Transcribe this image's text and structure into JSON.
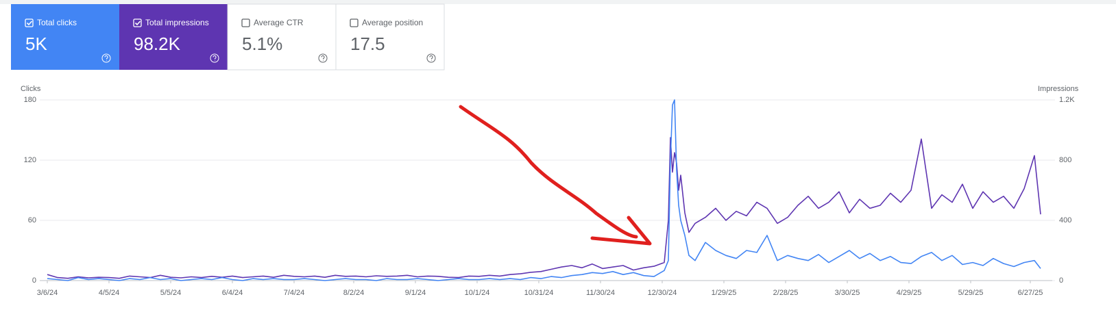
{
  "metrics": [
    {
      "label": "Total clicks",
      "value": "5K",
      "checked": true,
      "color": "#4285f4"
    },
    {
      "label": "Total impressions",
      "value": "98.2K",
      "checked": true,
      "color": "#5e35b1"
    },
    {
      "label": "Average CTR",
      "value": "5.1%",
      "checked": false,
      "color": "#ffffff"
    },
    {
      "label": "Average position",
      "value": "17.5",
      "checked": false,
      "color": "#ffffff"
    }
  ],
  "chart_data": {
    "type": "line",
    "y_label": "Clicks",
    "y2_label": "Impressions",
    "x": [
      "3/6/24",
      "3/11/24",
      "3/16/24",
      "3/21/24",
      "3/26/24",
      "3/31/24",
      "4/5/24",
      "4/10/24",
      "4/15/24",
      "4/20/24",
      "4/25/24",
      "4/30/24",
      "5/5/24",
      "5/10/24",
      "5/15/24",
      "5/20/24",
      "5/25/24",
      "5/30/24",
      "6/4/24",
      "6/9/24",
      "6/14/24",
      "6/19/24",
      "6/24/24",
      "6/29/24",
      "7/4/24",
      "7/9/24",
      "7/14/24",
      "7/19/24",
      "7/24/24",
      "7/29/24",
      "8/3/24",
      "8/8/24",
      "8/13/24",
      "8/18/24",
      "8/23/24",
      "8/28/24",
      "9/2/24",
      "9/7/24",
      "9/12/24",
      "9/17/24",
      "9/22/24",
      "9/27/24",
      "10/2/24",
      "10/7/24",
      "10/12/24",
      "10/17/24",
      "10/22/24",
      "10/27/24",
      "11/1/24",
      "11/6/24",
      "11/11/24",
      "11/16/24",
      "11/21/24",
      "11/26/24",
      "12/1/24",
      "12/6/24",
      "12/11/24",
      "12/16/24",
      "12/21/24",
      "12/26/24",
      "12/31/24",
      "1/2/25",
      "1/3/25",
      "1/4/25",
      "1/5/25",
      "1/6/25",
      "1/7/25",
      "1/8/25",
      "1/10/25",
      "1/12/25",
      "1/15/25",
      "1/20/25",
      "1/25/25",
      "1/30/25",
      "2/4/25",
      "2/9/25",
      "2/14/25",
      "2/19/25",
      "2/24/25",
      "3/1/25",
      "3/6/25",
      "3/11/25",
      "3/16/25",
      "3/21/25",
      "3/26/25",
      "3/31/25",
      "4/5/25",
      "4/10/25",
      "4/15/25",
      "4/20/25",
      "4/25/25",
      "4/30/25",
      "5/5/25",
      "5/10/25",
      "5/15/25",
      "5/20/25",
      "5/25/25",
      "5/30/25",
      "6/4/25",
      "6/9/25",
      "6/14/25",
      "6/19/25",
      "6/24/25",
      "6/29/25",
      "7/2/25"
    ],
    "series": [
      {
        "name": "Clicks",
        "color": "#4285f4",
        "values": [
          2,
          1,
          0,
          3,
          1,
          2,
          1,
          0,
          2,
          1,
          3,
          1,
          2,
          0,
          1,
          2,
          1,
          3,
          1,
          0,
          2,
          1,
          2,
          1,
          1,
          2,
          1,
          0,
          1,
          2,
          1,
          1,
          0,
          2,
          1,
          1,
          2,
          1,
          0,
          1,
          2,
          1,
          1,
          2,
          1,
          2,
          1,
          3,
          2,
          4,
          3,
          5,
          6,
          8,
          7,
          9,
          6,
          8,
          5,
          4,
          10,
          20,
          120,
          175,
          180,
          110,
          75,
          60,
          45,
          25,
          20,
          38,
          30,
          25,
          22,
          30,
          28,
          45,
          20,
          25,
          22,
          20,
          26,
          18,
          24,
          30,
          22,
          27,
          20,
          24,
          18,
          17,
          24,
          28,
          20,
          25,
          16,
          18,
          15,
          22,
          17,
          14,
          18,
          20,
          12
        ]
      },
      {
        "name": "Impressions",
        "color": "#5e35b1",
        "axis": "y2",
        "values": [
          40,
          20,
          15,
          25,
          18,
          22,
          20,
          15,
          30,
          25,
          20,
          35,
          22,
          18,
          25,
          20,
          28,
          22,
          30,
          20,
          25,
          30,
          22,
          35,
          28,
          25,
          30,
          22,
          35,
          28,
          30,
          25,
          32,
          28,
          30,
          35,
          25,
          30,
          28,
          22,
          20,
          30,
          28,
          35,
          30,
          40,
          45,
          55,
          60,
          75,
          90,
          100,
          85,
          110,
          80,
          90,
          100,
          70,
          85,
          95,
          120,
          400,
          950,
          720,
          850,
          780,
          600,
          700,
          450,
          320,
          380,
          420,
          480,
          400,
          460,
          430,
          520,
          480,
          380,
          420,
          500,
          560,
          480,
          520,
          590,
          450,
          540,
          480,
          500,
          580,
          520,
          600,
          940,
          480,
          570,
          520,
          640,
          480,
          590,
          520,
          560,
          480,
          610,
          830,
          440
        ]
      }
    ],
    "xlim": [
      "3/6/24",
      "7/5/25"
    ],
    "xticks": [
      "3/6/24",
      "4/5/24",
      "5/5/24",
      "6/4/24",
      "7/4/24",
      "8/2/24",
      "9/1/24",
      "10/1/24",
      "10/31/24",
      "11/30/24",
      "12/30/24",
      "1/29/25",
      "2/28/25",
      "3/30/25",
      "4/29/25",
      "5/29/25",
      "6/27/25"
    ],
    "ylim": [
      0,
      180
    ],
    "yticks": [
      0,
      60,
      120,
      180
    ],
    "y2lim": [
      0,
      1200
    ],
    "y2ticks": [
      0,
      400,
      800,
      {
        "value": 1200,
        "label": "1.2K"
      }
    ],
    "grid": true
  }
}
